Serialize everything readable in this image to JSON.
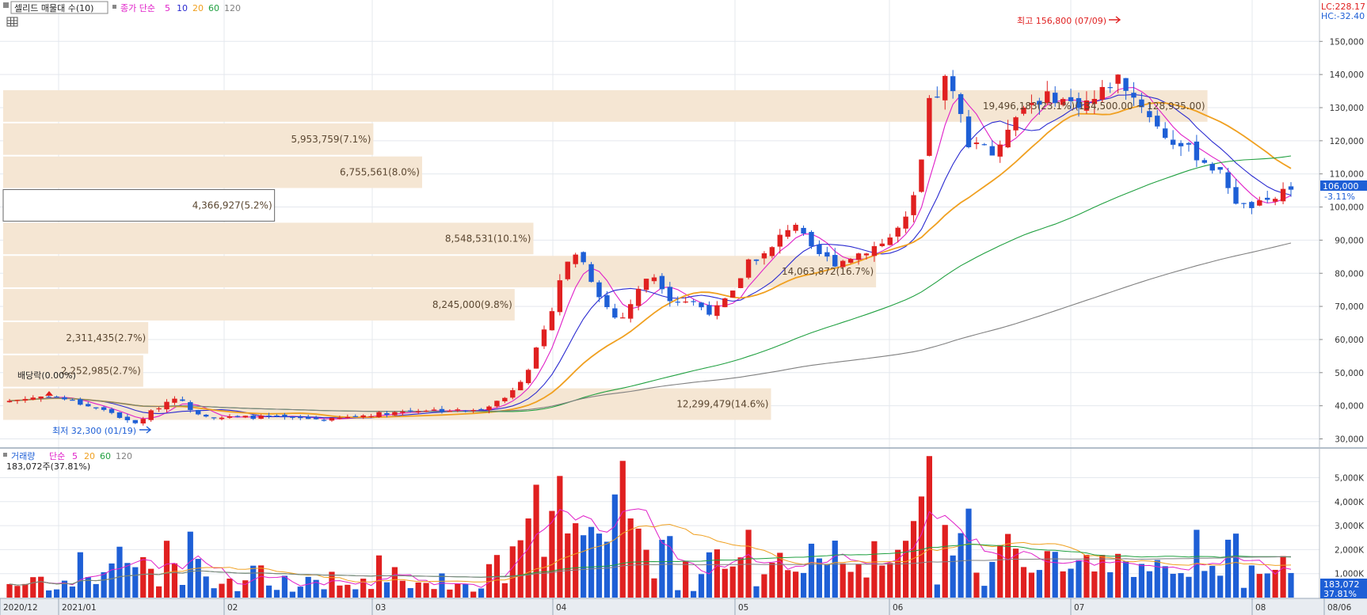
{
  "header": {
    "indicator_label": "셀리드 매물대 수(10)",
    "ma_title": "종가 단순",
    "ma_labels": [
      "5",
      "10",
      "20",
      "60",
      "120"
    ],
    "lc": "LC:228.17",
    "hc": "HC:-32.40"
  },
  "volume_header": {
    "title": "거래량",
    "ma_title": "단순",
    "ma_labels": [
      "5",
      "20",
      "60",
      "120"
    ],
    "current": "183,072주(37.81%)",
    "last_value": "183,072",
    "last_pct": "37.81%"
  },
  "annotations": {
    "high": "최고 156,800 (07/09)",
    "low": "최저 32,300 (01/19)",
    "dividend": "배당락(0.00%)",
    "last_price": "106,000",
    "last_change": "-3.11%"
  },
  "colors": {
    "up": "#e02020",
    "down": "#1e5fd6",
    "ma5": "#e020c8",
    "ma10": "#2a2ad0",
    "ma20": "#f0a020",
    "ma60": "#20a040",
    "ma120": "#808080",
    "profile": "#f5e6d3"
  },
  "chart_data": [
    {
      "type": "candlestick",
      "title": "셀리드",
      "x_ticks": [
        "2020/12",
        "2021/01",
        "02",
        "03",
        "04",
        "05",
        "06",
        "07",
        "08",
        "08/06"
      ],
      "y_ticks": [
        "30,000",
        "40,000",
        "50,000",
        "60,000",
        "70,000",
        "80,000",
        "90,000",
        "100,000",
        "110,000",
        "120,000",
        "130,000",
        "140,000",
        "150,000"
      ],
      "ylim": [
        27000,
        160000
      ],
      "volume_profile": [
        {
          "price_low": 35500,
          "price_high": 45500,
          "label": "12,299,479(14.6%)",
          "ratio": 0.614
        },
        {
          "price_low": 45500,
          "price_high": 55500,
          "label": "2,252,985(2.7%)",
          "ratio": 0.112
        },
        {
          "price_low": 55500,
          "price_high": 65500,
          "label": "2,311,435(2.7%)",
          "ratio": 0.116
        },
        {
          "price_low": 65500,
          "price_high": 75500,
          "label": "8,245,000(9.8%)",
          "ratio": 0.409
        },
        {
          "price_low": 75500,
          "price_high": 85500,
          "label": "14,063,872(16.7%)",
          "ratio": 0.698
        },
        {
          "price_low": 85500,
          "price_high": 95500,
          "label": "8,548,531(10.1%)",
          "ratio": 0.424
        },
        {
          "price_low": 95500,
          "price_high": 105500,
          "label": "4,366,927(5.2%)",
          "ratio": 0.217,
          "current": true
        },
        {
          "price_low": 105500,
          "price_high": 115500,
          "label": "6,755,561(8.0%)",
          "ratio": 0.335
        },
        {
          "price_low": 115500,
          "price_high": 125500,
          "label": "5,953,759(7.1%)",
          "ratio": 0.296
        },
        {
          "price_low": 125500,
          "price_high": 135500,
          "label": "19,496,183(23.1%)(134,500.00 ~ 128,935.00)",
          "ratio": 0.963
        }
      ]
    },
    {
      "type": "bar",
      "title": "거래량",
      "y_ticks": [
        "1,000K",
        "2,000K",
        "3,000K",
        "4,000K",
        "5,000K"
      ],
      "ylim": [
        0,
        6000
      ]
    }
  ]
}
